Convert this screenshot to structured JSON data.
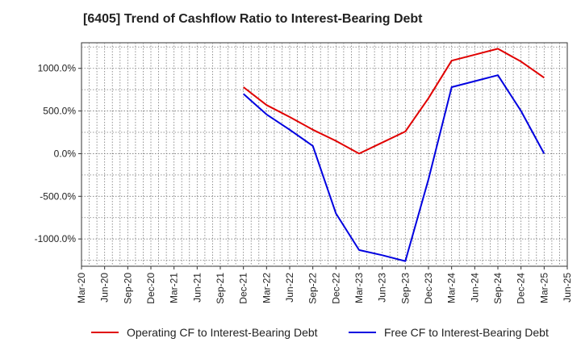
{
  "chart_data": {
    "type": "line",
    "title": "[6405]  Trend of Cashflow Ratio to Interest-Bearing Debt",
    "xlabel": "",
    "ylabel": "",
    "x_ticks": [
      "Mar-20",
      "Jun-20",
      "Sep-20",
      "Dec-20",
      "Mar-21",
      "Jun-21",
      "Sep-21",
      "Dec-21",
      "Mar-22",
      "Jun-22",
      "Sep-22",
      "Dec-22",
      "Mar-23",
      "Jun-23",
      "Sep-23",
      "Dec-23",
      "Mar-24",
      "Jun-24",
      "Sep-24",
      "Dec-24",
      "Mar-25",
      "Jun-25"
    ],
    "y_ticks": [
      1000,
      500,
      0,
      -500,
      -1000
    ],
    "y_tick_labels": [
      "1000.0%",
      "500.0%",
      "0.0%",
      "-500.0%",
      "-1000.0%"
    ],
    "ylim": [
      -1320,
      1300
    ],
    "grid": true,
    "legend_position": "bottom",
    "series": [
      {
        "name": "Operating CF to Interest-Bearing Debt",
        "color": "#e00000",
        "x": [
          "Dec-21",
          "Mar-22",
          "Jun-22",
          "Sep-22",
          "Dec-22",
          "Mar-23",
          "Jun-23",
          "Sep-23",
          "Dec-23",
          "Mar-24",
          "Jun-24",
          "Sep-24",
          "Dec-24",
          "Mar-25"
        ],
        "values": [
          780,
          570,
          430,
          280,
          150,
          0,
          130,
          260,
          650,
          1090,
          1160,
          1230,
          1080,
          890
        ]
      },
      {
        "name": "Free CF to Interest-Bearing Debt",
        "color": "#0000e0",
        "x": [
          "Dec-21",
          "Mar-22",
          "Jun-22",
          "Sep-22",
          "Dec-22",
          "Mar-23",
          "Jun-23",
          "Sep-23",
          "Dec-23",
          "Mar-24",
          "Jun-24",
          "Sep-24",
          "Dec-24",
          "Mar-25"
        ],
        "values": [
          700,
          460,
          280,
          90,
          -700,
          -1130,
          -1190,
          -1260,
          -300,
          780,
          850,
          920,
          500,
          0
        ]
      }
    ]
  }
}
